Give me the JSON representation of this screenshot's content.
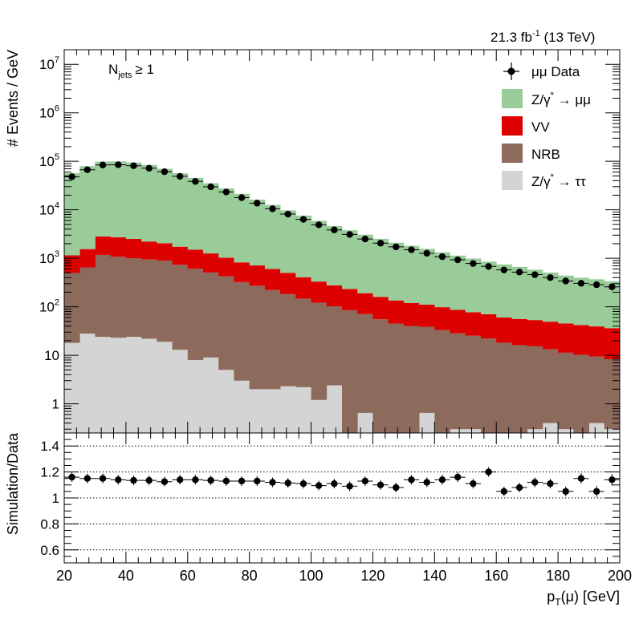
{
  "colors": {
    "zmm": "#99cc99",
    "vv": "#dd0000",
    "nrb": "#8c6a5c",
    "ztt": "#d4d4d4",
    "data": "#000000",
    "frame": "#000000",
    "grid": "#000000"
  },
  "header": {
    "lumi_value": "21.3 fb",
    "lumi_exp": "-1",
    "lumi_energy": " (13 TeV)"
  },
  "category_label": {
    "n": "N",
    "sub": "jets",
    "cut": "≥ 1"
  },
  "legend": {
    "placement": "top-right",
    "items": [
      {
        "key": "data",
        "label": "μμ Data",
        "style": "marker"
      },
      {
        "key": "zmm",
        "label_pre": "Z/γ",
        "label_sup": "*",
        "label_post": " → μμ",
        "style": "box"
      },
      {
        "key": "vv",
        "label": "VV",
        "style": "box"
      },
      {
        "key": "nrb",
        "label": "NRB",
        "style": "box"
      },
      {
        "key": "ztt",
        "label_pre": "Z/γ",
        "label_sup": "*",
        "label_post": " → ττ",
        "style": "box"
      }
    ]
  },
  "chart_data": [
    {
      "type": "area",
      "kind": "stacked-histogram",
      "y_scale": "log",
      "ylabel": "# Events / GeV",
      "xlabel_main": "p",
      "xlabel_sub": "T",
      "xlabel_rest": "(μ) [GeV]",
      "xlim": [
        20,
        200
      ],
      "ylim": [
        0.25,
        20000000
      ],
      "x_ticks": [
        20,
        40,
        60,
        80,
        100,
        120,
        140,
        160,
        180,
        200
      ],
      "y_ticks": [
        {
          "v": 1,
          "base": "1"
        },
        {
          "v": 10,
          "base": "10"
        },
        {
          "v": 100,
          "base": "10",
          "exp": "2"
        },
        {
          "v": 1000,
          "base": "10",
          "exp": "3"
        },
        {
          "v": 10000,
          "base": "10",
          "exp": "4"
        },
        {
          "v": 100000,
          "base": "10",
          "exp": "5"
        },
        {
          "v": 1000000,
          "base": "10",
          "exp": "6"
        },
        {
          "v": 10000000,
          "base": "10",
          "exp": "7"
        }
      ],
      "bin_edges": [
        20,
        25,
        30,
        35,
        40,
        45,
        50,
        55,
        60,
        65,
        70,
        75,
        80,
        85,
        90,
        95,
        100,
        105,
        110,
        115,
        120,
        125,
        130,
        135,
        140,
        145,
        150,
        155,
        160,
        165,
        170,
        175,
        180,
        185,
        190,
        195,
        200
      ],
      "series": [
        {
          "key": "ztt",
          "name": "Z/γ* → ττ",
          "values": [
            18,
            28,
            24,
            23,
            24,
            22,
            19,
            13,
            8,
            9,
            5,
            3,
            2,
            2,
            2.3,
            2.2,
            1.2,
            2.4,
            0.2,
            0.65,
            0.2,
            0.2,
            0.2,
            0.65,
            0.2,
            0.3,
            0.3,
            0.2,
            0.2,
            0.2,
            0.3,
            0.4,
            0.3,
            0.2,
            0.4,
            0.3
          ]
        },
        {
          "key": "nrb",
          "name": "NRB",
          "values": [
            480,
            620,
            1150,
            1050,
            980,
            920,
            880,
            720,
            600,
            500,
            420,
            320,
            270,
            220,
            180,
            145,
            120,
            100,
            85,
            70,
            55,
            45,
            40,
            38,
            33,
            28,
            25,
            22,
            18,
            16,
            15,
            13,
            11,
            10,
            9,
            8
          ]
        },
        {
          "key": "vv",
          "name": "VV",
          "values": [
            650,
            900,
            1650,
            1650,
            1500,
            1280,
            1150,
            1000,
            900,
            750,
            600,
            500,
            440,
            380,
            320,
            260,
            210,
            175,
            148,
            120,
            105,
            90,
            80,
            72,
            65,
            58,
            52,
            48,
            42,
            40,
            38,
            36,
            34,
            32,
            30,
            28
          ]
        },
        {
          "key": "zmm",
          "name": "Z/γ* → μμ",
          "values": [
            56000,
            78000,
            96000,
            97000,
            92000,
            82000,
            68000,
            55000,
            44000,
            34000,
            26500,
            20500,
            15500,
            12000,
            9200,
            7200,
            5600,
            4350,
            3550,
            2870,
            2360,
            1960,
            1690,
            1460,
            1230,
            1050,
            910,
            785,
            690,
            610,
            530,
            460,
            395,
            355,
            330,
            300
          ]
        },
        {
          "key": "data",
          "name": "μμ Data",
          "values": [
            48000,
            67000,
            84000,
            85000,
            81000,
            72000,
            61000,
            49000,
            38500,
            29800,
            23300,
            17800,
            13700,
            10500,
            8150,
            6350,
            4900,
            3850,
            3100,
            2500,
            2050,
            1720,
            1500,
            1270,
            1080,
            930,
            780,
            680,
            575,
            520,
            460,
            400,
            340,
            305,
            285,
            258
          ]
        }
      ]
    },
    {
      "type": "scatter",
      "ylabel": "Simulation/Data",
      "xlim": [
        20,
        200
      ],
      "ylim": [
        0.5,
        1.5
      ],
      "y_ticks": [
        0.6,
        0.8,
        1,
        1.2,
        1.4
      ],
      "y_tick_labels": [
        "0.6",
        "0.8",
        "1",
        "1.2",
        "1.4"
      ],
      "gridlines": [
        0.6,
        0.8,
        1,
        1.2,
        1.4
      ],
      "x": [
        22.5,
        27.5,
        32.5,
        37.5,
        42.5,
        47.5,
        52.5,
        57.5,
        62.5,
        67.5,
        72.5,
        77.5,
        82.5,
        87.5,
        92.5,
        97.5,
        102.5,
        107.5,
        112.5,
        117.5,
        122.5,
        127.5,
        132.5,
        137.5,
        142.5,
        147.5,
        152.5,
        157.5,
        162.5,
        167.5,
        172.5,
        177.5,
        182.5,
        187.5,
        192.5,
        197.5
      ],
      "y": [
        1.16,
        1.15,
        1.15,
        1.14,
        1.135,
        1.135,
        1.125,
        1.14,
        1.14,
        1.135,
        1.13,
        1.13,
        1.13,
        1.12,
        1.115,
        1.11,
        1.095,
        1.11,
        1.09,
        1.13,
        1.1,
        1.08,
        1.14,
        1.12,
        1.14,
        1.16,
        1.11,
        1.2,
        1.05,
        1.08,
        1.12,
        1.11,
        1.05,
        1.15,
        1.05,
        1.14
      ],
      "yerr": [
        0.005,
        0.005,
        0.005,
        0.005,
        0.005,
        0.005,
        0.005,
        0.005,
        0.005,
        0.005,
        0.005,
        0.005,
        0.006,
        0.007,
        0.008,
        0.009,
        0.01,
        0.011,
        0.012,
        0.014,
        0.016,
        0.017,
        0.018,
        0.02,
        0.022,
        0.024,
        0.026,
        0.028,
        0.03,
        0.032,
        0.034,
        0.036,
        0.038,
        0.04,
        0.042,
        0.045
      ]
    }
  ]
}
